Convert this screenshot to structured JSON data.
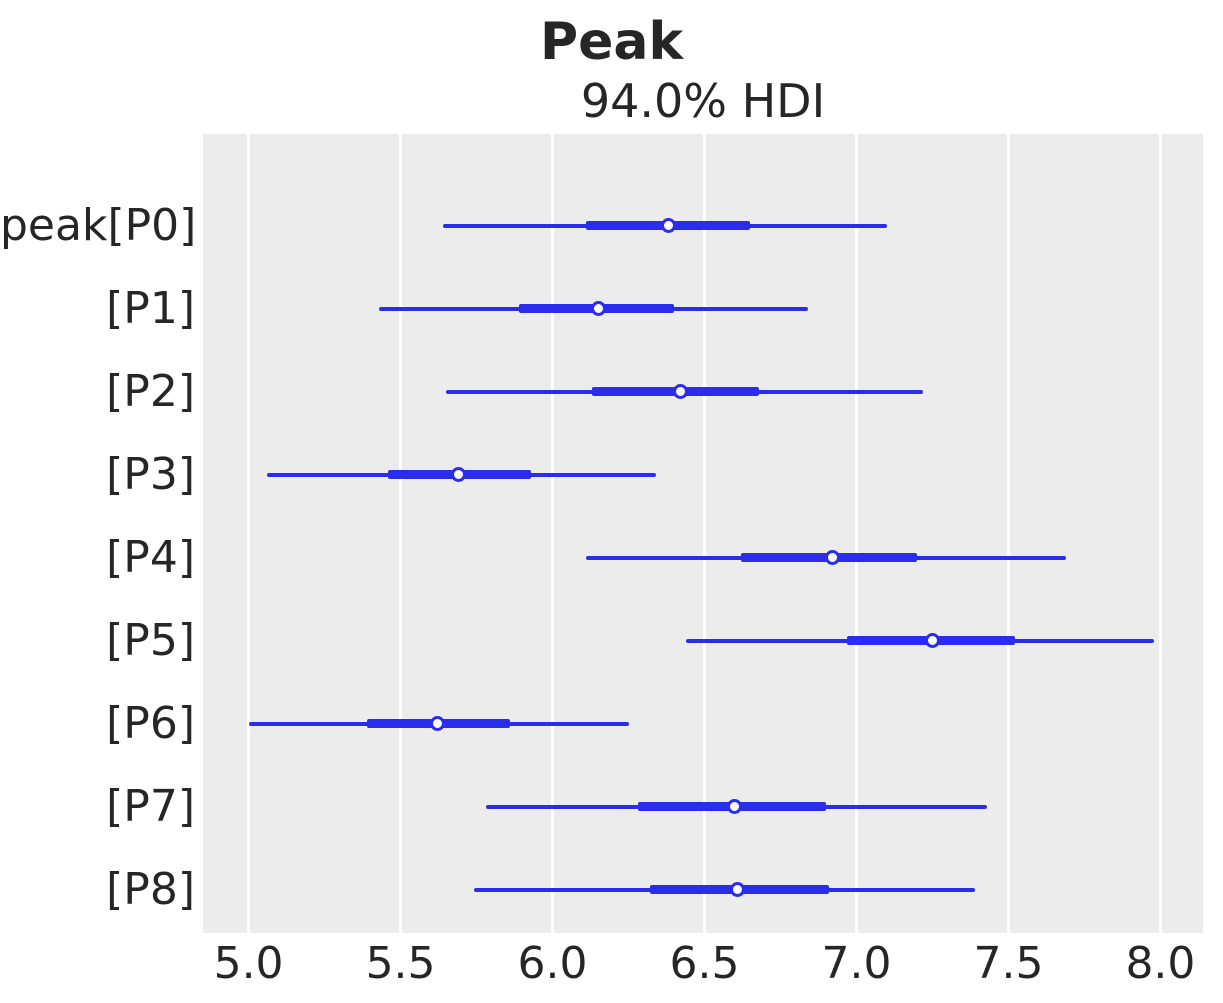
{
  "chart_data": {
    "type": "forest",
    "title": "Peak",
    "subtitle": "94.0% HDI",
    "hdi_probability_percent": 94.0,
    "xlim": [
      4.85,
      8.14
    ],
    "xticks": [
      5.0,
      5.5,
      6.0,
      6.5,
      7.0,
      7.5,
      8.0
    ],
    "xtick_labels": [
      "5.0",
      "5.5",
      "6.0",
      "6.5",
      "7.0",
      "7.5",
      "8.0"
    ],
    "grid": "vertical white gridlines on gray panel",
    "legend": "none",
    "series": [
      {
        "label": "peak[P0]",
        "hdi_low": 5.64,
        "quartile_low": 6.11,
        "median": 6.38,
        "quartile_high": 6.65,
        "hdi_high": 7.1
      },
      {
        "label": "[P1]",
        "hdi_low": 5.43,
        "quartile_low": 5.89,
        "median": 6.15,
        "quartile_high": 6.4,
        "hdi_high": 6.84
      },
      {
        "label": "[P2]",
        "hdi_low": 5.65,
        "quartile_low": 6.13,
        "median": 6.42,
        "quartile_high": 6.68,
        "hdi_high": 7.22
      },
      {
        "label": "[P3]",
        "hdi_low": 5.06,
        "quartile_low": 5.46,
        "median": 5.69,
        "quartile_high": 5.93,
        "hdi_high": 6.34
      },
      {
        "label": "[P4]",
        "hdi_low": 6.11,
        "quartile_low": 6.62,
        "median": 6.92,
        "quartile_high": 7.2,
        "hdi_high": 7.69
      },
      {
        "label": "[P5]",
        "hdi_low": 6.44,
        "quartile_low": 6.97,
        "median": 7.25,
        "quartile_high": 7.52,
        "hdi_high": 7.98
      },
      {
        "label": "[P6]",
        "hdi_low": 5.0,
        "quartile_low": 5.39,
        "median": 5.62,
        "quartile_high": 5.86,
        "hdi_high": 6.25
      },
      {
        "label": "[P7]",
        "hdi_low": 5.78,
        "quartile_low": 6.28,
        "median": 6.6,
        "quartile_high": 6.9,
        "hdi_high": 7.43
      },
      {
        "label": "[P8]",
        "hdi_low": 5.74,
        "quartile_low": 6.32,
        "median": 6.61,
        "quartile_high": 6.91,
        "hdi_high": 7.39
      }
    ],
    "colors": {
      "line": "#2a2eec",
      "marker_fill": "#ffffff",
      "marker_edge": "#2a2eec",
      "plot_background": "#ececec",
      "gridline": "#ffffff",
      "text": "#262626",
      "figure_background": "#ffffff"
    }
  }
}
